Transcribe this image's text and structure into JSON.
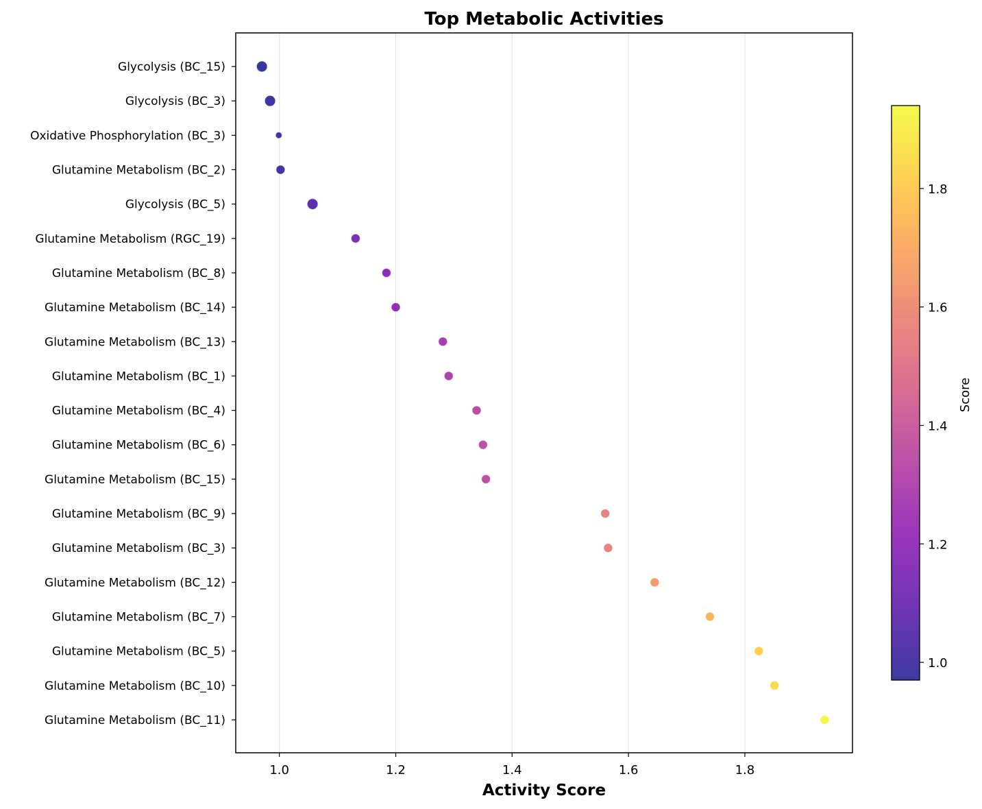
{
  "chart_data": {
    "type": "scatter",
    "title": "Top Metabolic Activities",
    "xlabel": "Activity Score",
    "ylabel": "",
    "xlim": [
      0.925,
      1.985
    ],
    "xticks": [
      1.0,
      1.2,
      1.4,
      1.6,
      1.8
    ],
    "xtick_labels": [
      "1.0",
      "1.2",
      "1.4",
      "1.6",
      "1.8"
    ],
    "grid": "vertical",
    "colormap": "plasma",
    "colorbar": {
      "label": "Score",
      "range": [
        0.97,
        1.94
      ],
      "ticks": [
        1.0,
        1.2,
        1.4,
        1.6,
        1.8
      ],
      "tick_labels": [
        "1.0",
        "1.2",
        "1.4",
        "1.6",
        "1.8"
      ]
    },
    "points": [
      {
        "label": "Glycolysis (BC_15)",
        "x": 0.97,
        "size": 1.0
      },
      {
        "label": "Glycolysis (BC_3)",
        "x": 0.984,
        "size": 1.0
      },
      {
        "label": "Oxidative Phosphorylation (BC_3)",
        "x": 0.999,
        "size": 0.35
      },
      {
        "label": "Glutamine Metabolism (BC_2)",
        "x": 1.002,
        "size": 0.72
      },
      {
        "label": "Glycolysis (BC_5)",
        "x": 1.057,
        "size": 1.0
      },
      {
        "label": "Glutamine Metabolism (RGC_19)",
        "x": 1.131,
        "size": 0.72
      },
      {
        "label": "Glutamine Metabolism (BC_8)",
        "x": 1.184,
        "size": 0.72
      },
      {
        "label": "Glutamine Metabolism (BC_14)",
        "x": 1.2,
        "size": 0.72
      },
      {
        "label": "Glutamine Metabolism (BC_13)",
        "x": 1.281,
        "size": 0.72
      },
      {
        "label": "Glutamine Metabolism (BC_1)",
        "x": 1.291,
        "size": 0.72
      },
      {
        "label": "Glutamine Metabolism (BC_4)",
        "x": 1.339,
        "size": 0.72
      },
      {
        "label": "Glutamine Metabolism (BC_6)",
        "x": 1.35,
        "size": 0.72
      },
      {
        "label": "Glutamine Metabolism (BC_15)",
        "x": 1.355,
        "size": 0.72
      },
      {
        "label": "Glutamine Metabolism (BC_9)",
        "x": 1.56,
        "size": 0.72
      },
      {
        "label": "Glutamine Metabolism (BC_3)",
        "x": 1.565,
        "size": 0.72
      },
      {
        "label": "Glutamine Metabolism (BC_12)",
        "x": 1.645,
        "size": 0.72
      },
      {
        "label": "Glutamine Metabolism (BC_7)",
        "x": 1.74,
        "size": 0.72
      },
      {
        "label": "Glutamine Metabolism (BC_5)",
        "x": 1.824,
        "size": 0.72
      },
      {
        "label": "Glutamine Metabolism (BC_10)",
        "x": 1.851,
        "size": 0.72
      },
      {
        "label": "Glutamine Metabolism (BC_11)",
        "x": 1.937,
        "size": 0.72
      }
    ]
  }
}
